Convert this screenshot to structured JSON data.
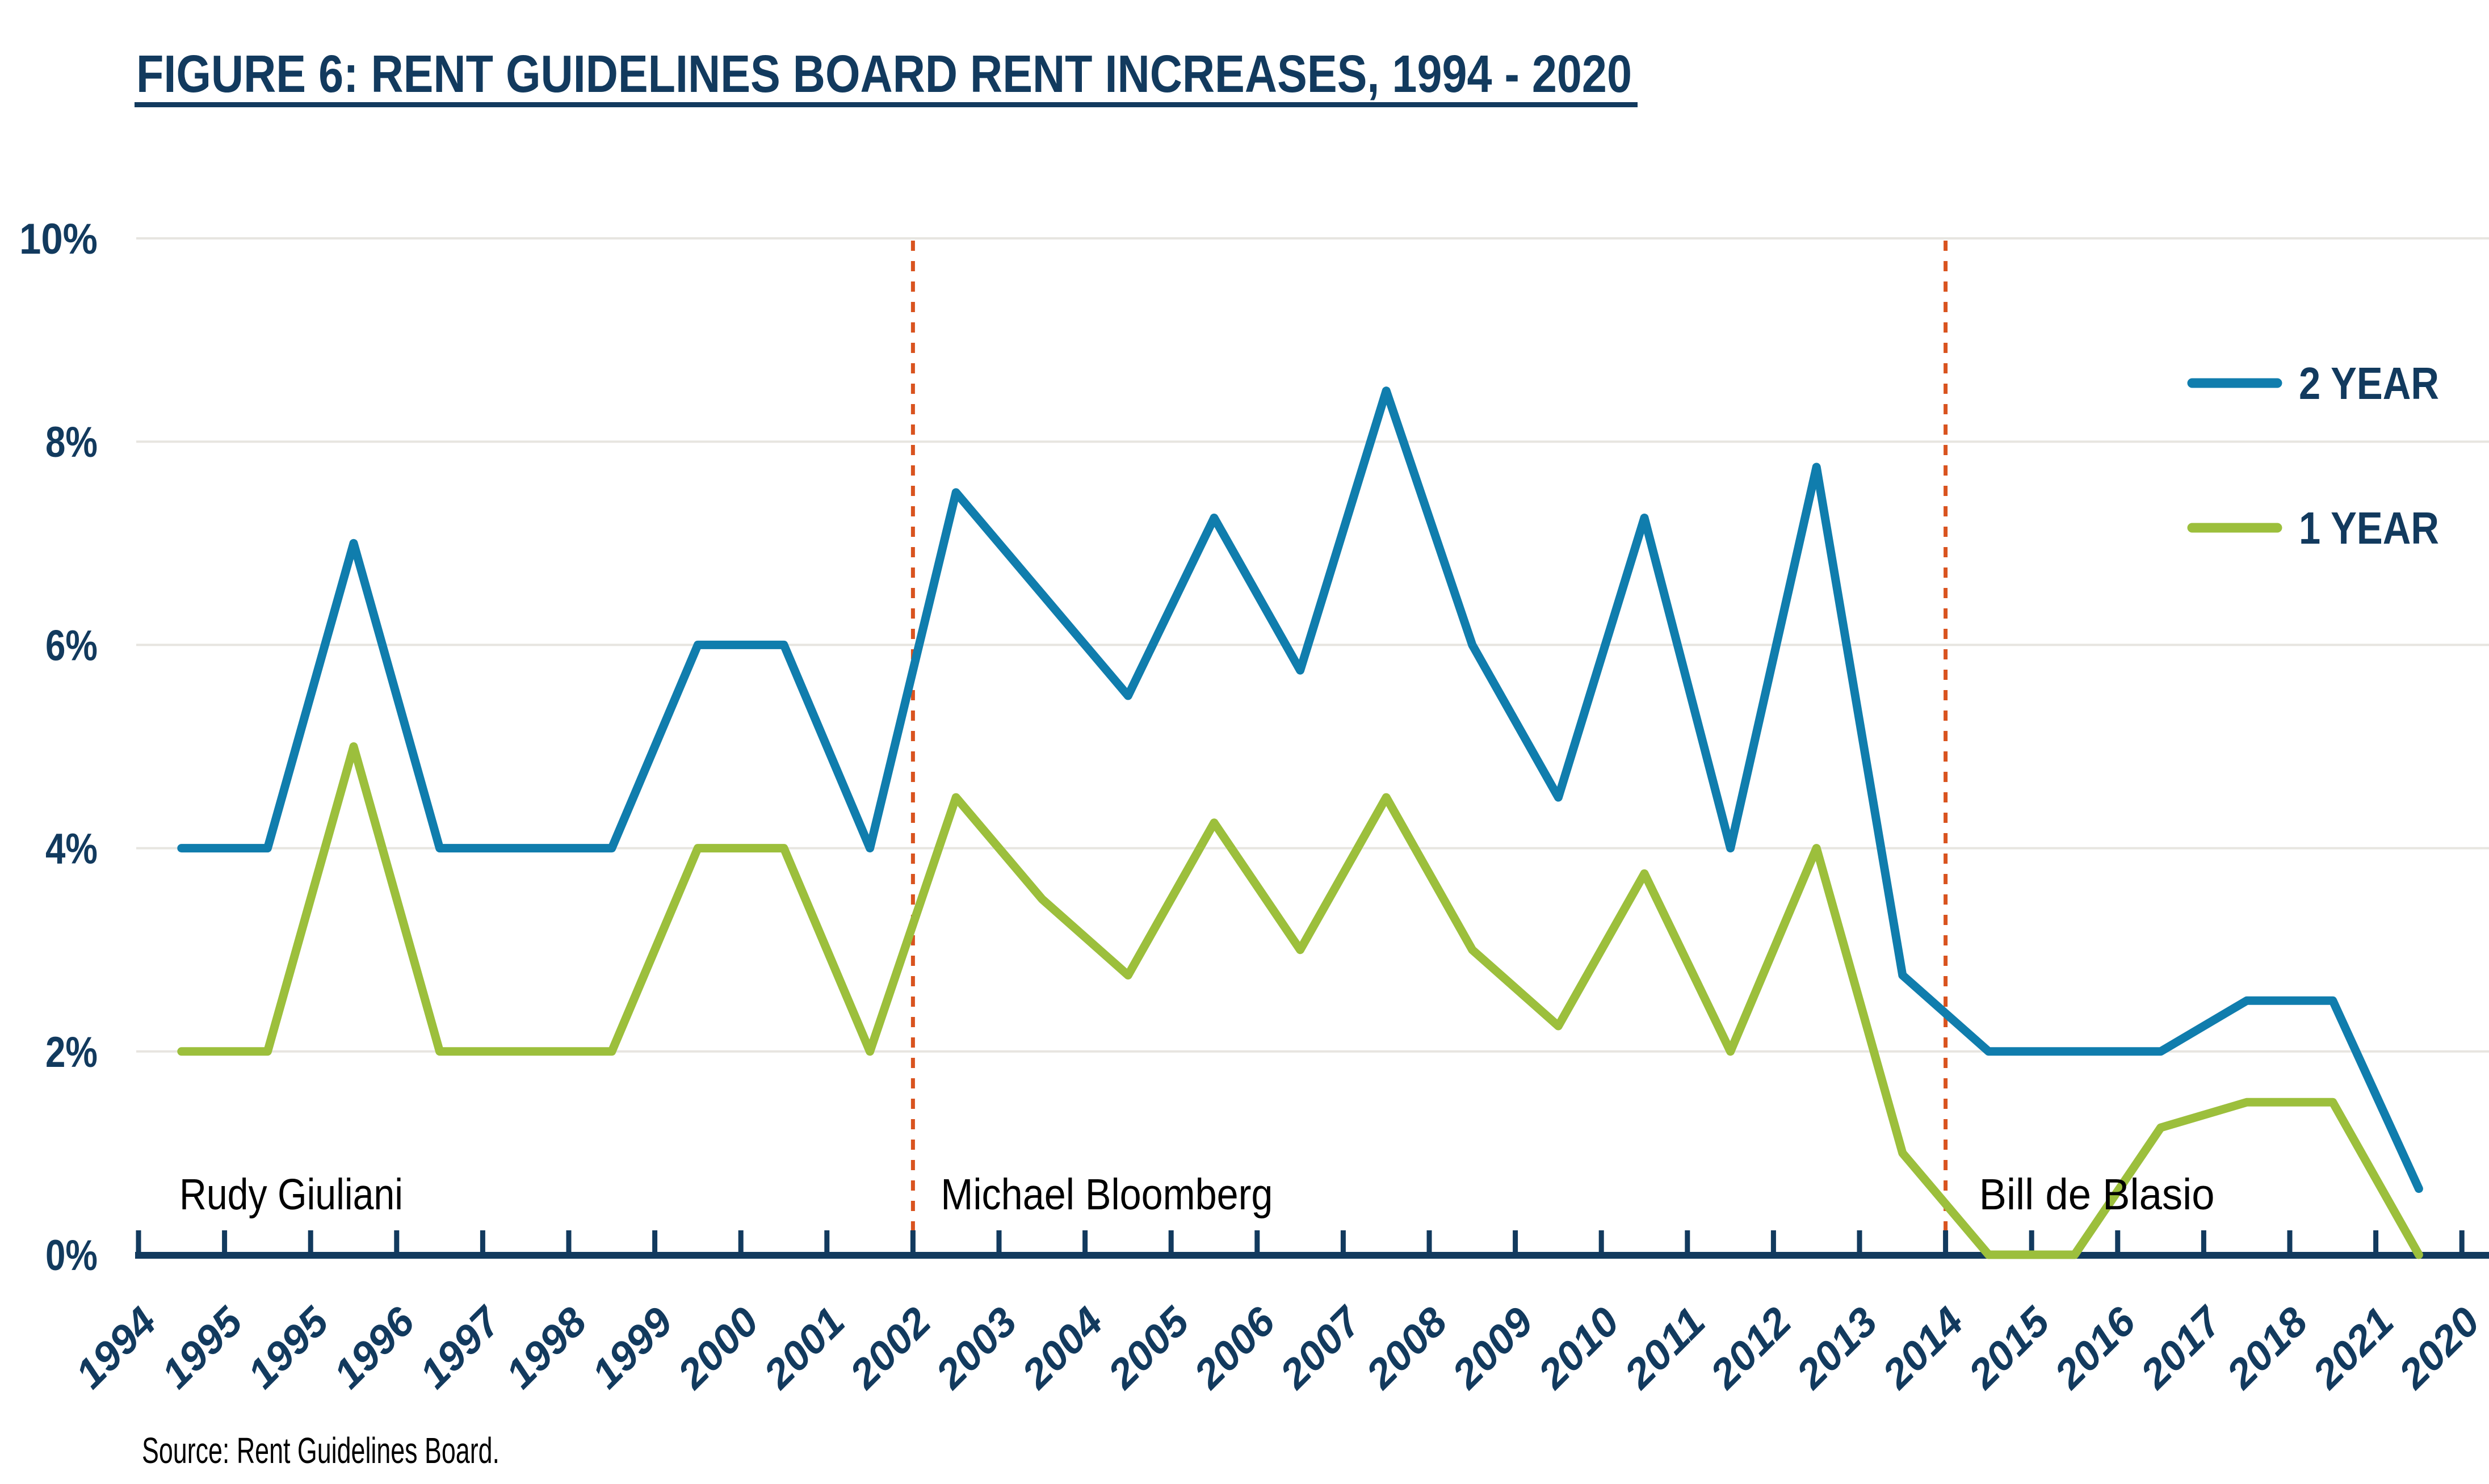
{
  "title": "FIGURE 6: RENT GUIDELINES BOARD RENT INCREASES, 1994 - 2020",
  "source": "Source: Rent Guidelines Board.",
  "colors": {
    "navy": "#123a5e",
    "blue": "#107dad",
    "green": "#9cbf3c",
    "grid": "#e7e5e0",
    "divider": "#d9531f",
    "black": "#000000",
    "background": "#ffffff"
  },
  "legend": {
    "items": [
      {
        "label": "2 YEAR",
        "color": "#107dad"
      },
      {
        "label": "1 YEAR",
        "color": "#9cbf3c"
      }
    ]
  },
  "annotations": {
    "mayors": [
      {
        "name": "Rudy Giuliani",
        "divider_at": null
      },
      {
        "name": "Michael Bloomberg",
        "divider_at": "2002"
      },
      {
        "name": "Bill de Blasio",
        "divider_at": "2014"
      }
    ]
  },
  "chart_data": {
    "type": "line",
    "title": "FIGURE 6: RENT GUIDELINES BOARD RENT INCREASES, 1994 - 2020",
    "categories": [
      "1994",
      "1995",
      "1995",
      "1996",
      "1997",
      "1998",
      "1999",
      "2000",
      "2001",
      "2002",
      "2003",
      "2004",
      "2005",
      "2006",
      "2007",
      "2008",
      "2009",
      "2010",
      "2011",
      "2012",
      "2013",
      "2014",
      "2015",
      "2016",
      "2017",
      "2018",
      "2021",
      "2020"
    ],
    "series": [
      {
        "name": "2 YEAR",
        "color": "#107dad",
        "values": [
          4,
          4,
          7,
          4,
          4,
          4,
          6,
          6,
          4,
          7.5,
          6.5,
          5.5,
          7.25,
          5.75,
          8.5,
          6,
          4.5,
          7.25,
          4,
          7.75,
          2.75,
          2,
          2,
          2,
          2.5,
          2.5,
          0.65,
          null
        ]
      },
      {
        "name": "1 YEAR",
        "color": "#9cbf3c",
        "values": [
          2,
          2,
          5,
          2,
          2,
          2,
          4,
          4,
          2,
          4.5,
          3.5,
          2.75,
          4.25,
          3,
          4.5,
          3,
          2.25,
          3.75,
          2,
          4,
          1,
          0,
          0,
          1.25,
          1.5,
          1.5,
          0,
          null
        ]
      }
    ],
    "ylim": [
      0,
      10
    ],
    "y_ticks": [
      {
        "value": 0,
        "label": "0%"
      },
      {
        "value": 2,
        "label": "2%"
      },
      {
        "value": 4,
        "label": "4%"
      },
      {
        "value": 6,
        "label": "6%"
      },
      {
        "value": 8,
        "label": "8%"
      },
      {
        "value": 10,
        "label": "10%"
      }
    ],
    "xlabel": "",
    "ylabel": "",
    "grid": "horizontal",
    "x_axis_position": "between-ticks",
    "legend_position": "right"
  }
}
